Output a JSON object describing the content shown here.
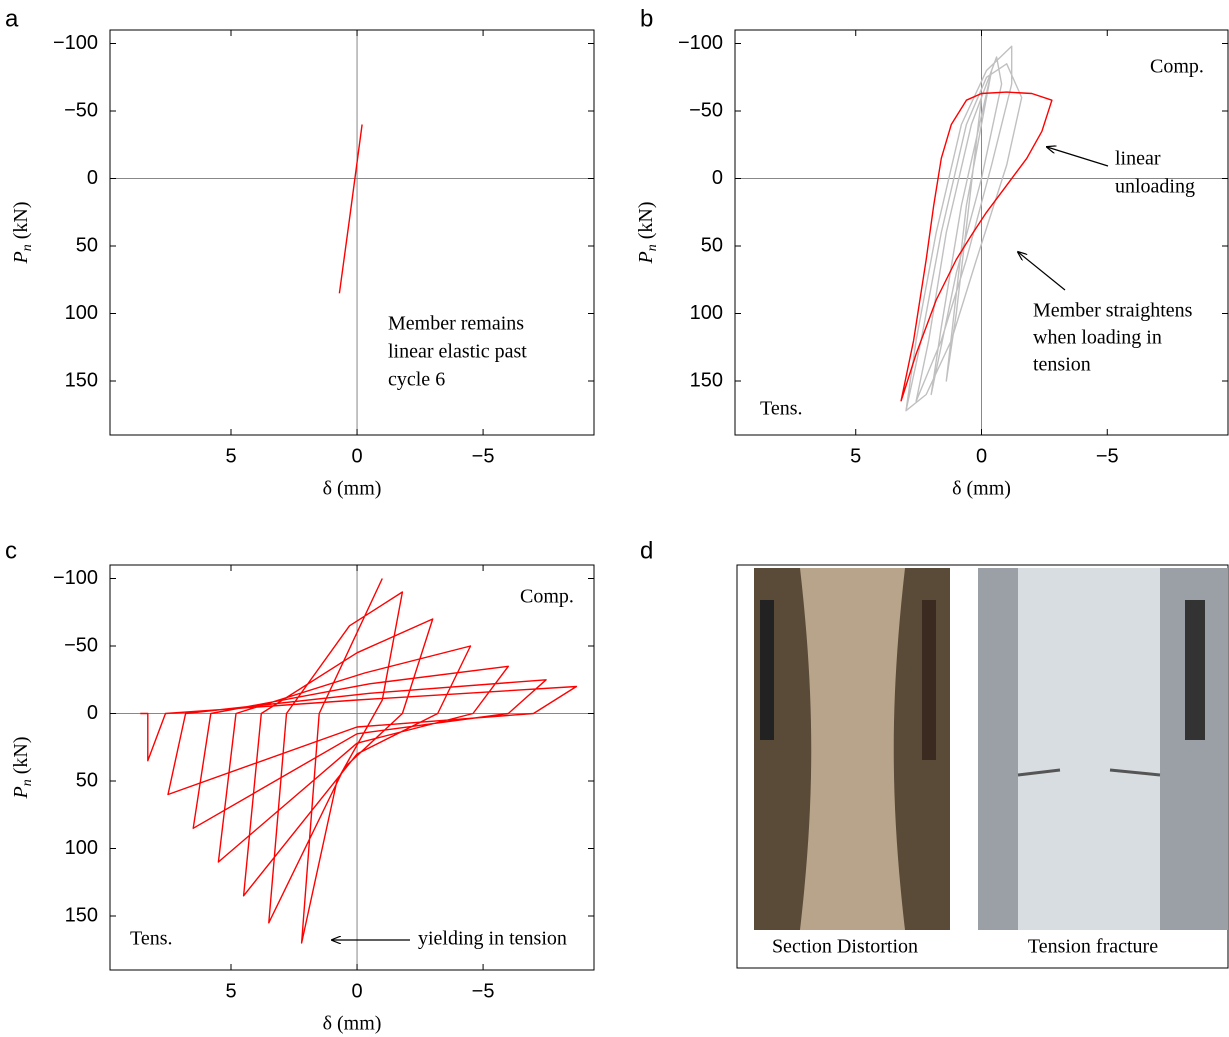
{
  "chart_data": [
    {
      "type": "line",
      "panel": "a",
      "xlabel": "δ (mm)",
      "ylabel_symbol": "P",
      "ylabel_subscript": "n",
      "ylabel_unit": "(kN)",
      "xlim": [
        9.8,
        -9.4
      ],
      "ylim": [
        -110,
        190
      ],
      "xticks": [
        5,
        0,
        {
          "value": -5,
          "label": "−5"
        }
      ],
      "yticks": [
        {
          "value": -100,
          "label": "−100"
        },
        {
          "value": -50,
          "label": "−50"
        },
        0,
        50,
        100,
        150
      ],
      "annotations": [
        "Member remains",
        "linear elastic past",
        "cycle 6"
      ],
      "series": [
        {
          "color": "#ff0000",
          "x": [
            0.7,
            0.3,
            -0.2
          ],
          "values": [
            85,
            30,
            -40
          ]
        }
      ]
    },
    {
      "type": "line",
      "panel": "b",
      "xlabel": "δ (mm)",
      "ylabel_symbol": "P",
      "ylabel_subscript": "n",
      "ylabel_unit": "(kN)",
      "xlim": [
        9.8,
        -9.8
      ],
      "ylim": [
        -110,
        190
      ],
      "xticks": [
        5,
        0,
        {
          "value": -5,
          "label": "−5"
        }
      ],
      "yticks": [
        {
          "value": -100,
          "label": "−100"
        },
        {
          "value": -50,
          "label": "−50"
        },
        0,
        50,
        100,
        150
      ],
      "annotations": [
        "Comp.",
        "Tens.",
        "linear",
        "unloading",
        "Member straightens",
        "when loading in",
        "tension"
      ],
      "series": [
        {
          "color": "#c0c0c0",
          "x": [
            3.0,
            2.4,
            1.6,
            0.6,
            -0.2,
            -1.0,
            -1.6,
            -1.0,
            0.2,
            1.2,
            2.2,
            3.0,
            2.6,
            1.8,
            0.8,
            -0.2,
            -1.2,
            -1.2,
            -0.4,
            0.6,
            1.6,
            2.6,
            2.1,
            1.4,
            0.4,
            -0.6,
            -0.8,
            0.0,
            1.0,
            2.0,
            1.6,
            0.8,
            -0.4,
            -0.2,
            0.6,
            1.4,
            1.0,
            0.0
          ],
          "values": [
            172,
            120,
            40,
            -40,
            -75,
            -85,
            -60,
            -10,
            60,
            120,
            160,
            172,
            120,
            40,
            -40,
            -80,
            -98,
            -70,
            -10,
            60,
            120,
            165,
            120,
            40,
            -40,
            -90,
            -70,
            0,
            70,
            160,
            110,
            20,
            -80,
            -60,
            20,
            150,
            100,
            -60
          ]
        },
        {
          "color": "#ff0000",
          "x": [
            3.2,
            2.7,
            2.2,
            1.9,
            1.6,
            1.2,
            0.6,
            0.0,
            -1.0,
            -2.0,
            -2.8,
            -2.4,
            -1.8,
            -1.0,
            -0.2,
            0.4,
            1.0,
            1.8,
            2.6,
            3.2
          ],
          "values": [
            165,
            120,
            60,
            20,
            -15,
            -40,
            -58,
            -63,
            -64,
            -63,
            -58,
            -35,
            -15,
            5,
            25,
            42,
            60,
            90,
            130,
            165
          ]
        }
      ]
    },
    {
      "type": "line",
      "panel": "c",
      "xlabel": "δ (mm)",
      "ylabel_symbol": "P",
      "ylabel_subscript": "n",
      "ylabel_unit": "(kN)",
      "xlim": [
        9.8,
        -9.4
      ],
      "ylim": [
        -110,
        190
      ],
      "xticks": [
        5,
        0,
        {
          "value": -5,
          "label": "−5"
        }
      ],
      "yticks": [
        {
          "value": -100,
          "label": "−100"
        },
        {
          "value": -50,
          "label": "−50"
        },
        0,
        50,
        100,
        150
      ],
      "annotations": [
        "Comp.",
        "Tens.",
        "yielding in tension"
      ],
      "series": [
        {
          "color": "#ff0000",
          "x": [
            8.6,
            8.3,
            8.3,
            7.6,
            0,
            -8.7,
            -7,
            0,
            7.5,
            6.8,
            -0.5,
            -7.5,
            -6,
            0,
            6.5,
            5.8,
            -0.5,
            -6,
            -4.6,
            0,
            5.5,
            4.8,
            -0.3,
            -4.5,
            -3.2,
            0,
            4.5,
            3.8,
            0,
            -3,
            -1.8,
            0.5,
            3.5,
            2.8,
            0.3,
            -1.8,
            -1,
            0.8,
            2.2,
            1.5,
            -1
          ],
          "values": [
            0,
            0,
            35,
            0,
            -10,
            -20,
            0,
            10,
            60,
            0,
            -15,
            -25,
            0,
            15,
            85,
            0,
            -22,
            -35,
            0,
            22,
            110,
            0,
            -30,
            -50,
            0,
            30,
            135,
            0,
            -45,
            -70,
            0,
            40,
            155,
            0,
            -65,
            -90,
            -10,
            50,
            170,
            0,
            -100
          ]
        }
      ]
    }
  ],
  "photo_panel": {
    "panel": "d",
    "captions": [
      "Section Distortion",
      "Tension fracture"
    ]
  }
}
